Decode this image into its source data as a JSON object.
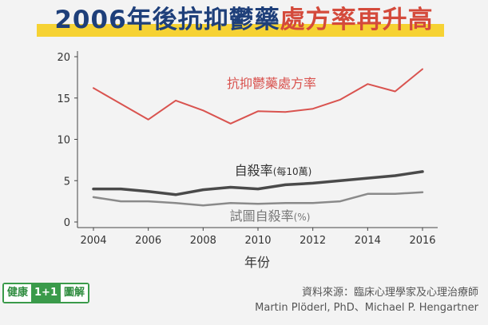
{
  "title": {
    "part1": "2006年後抗抑鬱藥",
    "part2": "處方率再升高"
  },
  "colors": {
    "title_blue": "#1e3f7a",
    "title_red": "#d44a3b",
    "highlight": "#f6d233",
    "antidepressant": "#d9534f",
    "suicide": "#4a4a4a",
    "attempt": "#8a8a8a"
  },
  "chart_data": {
    "type": "line",
    "x": [
      2004,
      2005,
      2006,
      2007,
      2008,
      2009,
      2010,
      2011,
      2012,
      2013,
      2014,
      2015,
      2016
    ],
    "xticks": [
      "2004",
      "2006",
      "2008",
      "2010",
      "2012",
      "2014",
      "2016"
    ],
    "yticks": [
      "0",
      "5",
      "10",
      "15",
      "20"
    ],
    "xlabel": "年份",
    "ylabel": "",
    "xlim": [
      2004,
      2016
    ],
    "ylim": [
      0,
      20
    ],
    "grid": false,
    "series": [
      {
        "name": "抗抑鬱藥處方率",
        "unit": "",
        "values": [
          16.2,
          14.3,
          12.4,
          14.7,
          13.5,
          11.9,
          13.4,
          13.3,
          13.7,
          14.8,
          16.7,
          15.8,
          18.5
        ]
      },
      {
        "name": "自殺率",
        "unit": "(每10萬)",
        "values": [
          4.0,
          4.0,
          3.7,
          3.3,
          3.9,
          4.2,
          4.0,
          4.5,
          4.7,
          5.0,
          5.3,
          5.6,
          6.1
        ]
      },
      {
        "name": "試圖自殺率",
        "unit": "(%)",
        "values": [
          3.0,
          2.5,
          2.5,
          2.3,
          2.0,
          2.3,
          2.2,
          2.3,
          2.3,
          2.5,
          3.4,
          3.4,
          3.6
        ]
      }
    ]
  },
  "logo": {
    "part1": "健康",
    "part2": "1+1",
    "part3": "圖解"
  },
  "source": {
    "line1": "資料來源：臨床心理學家及心理治療師",
    "line2": "Martin Plöderl, PhD、Michael P. Hengartner"
  }
}
